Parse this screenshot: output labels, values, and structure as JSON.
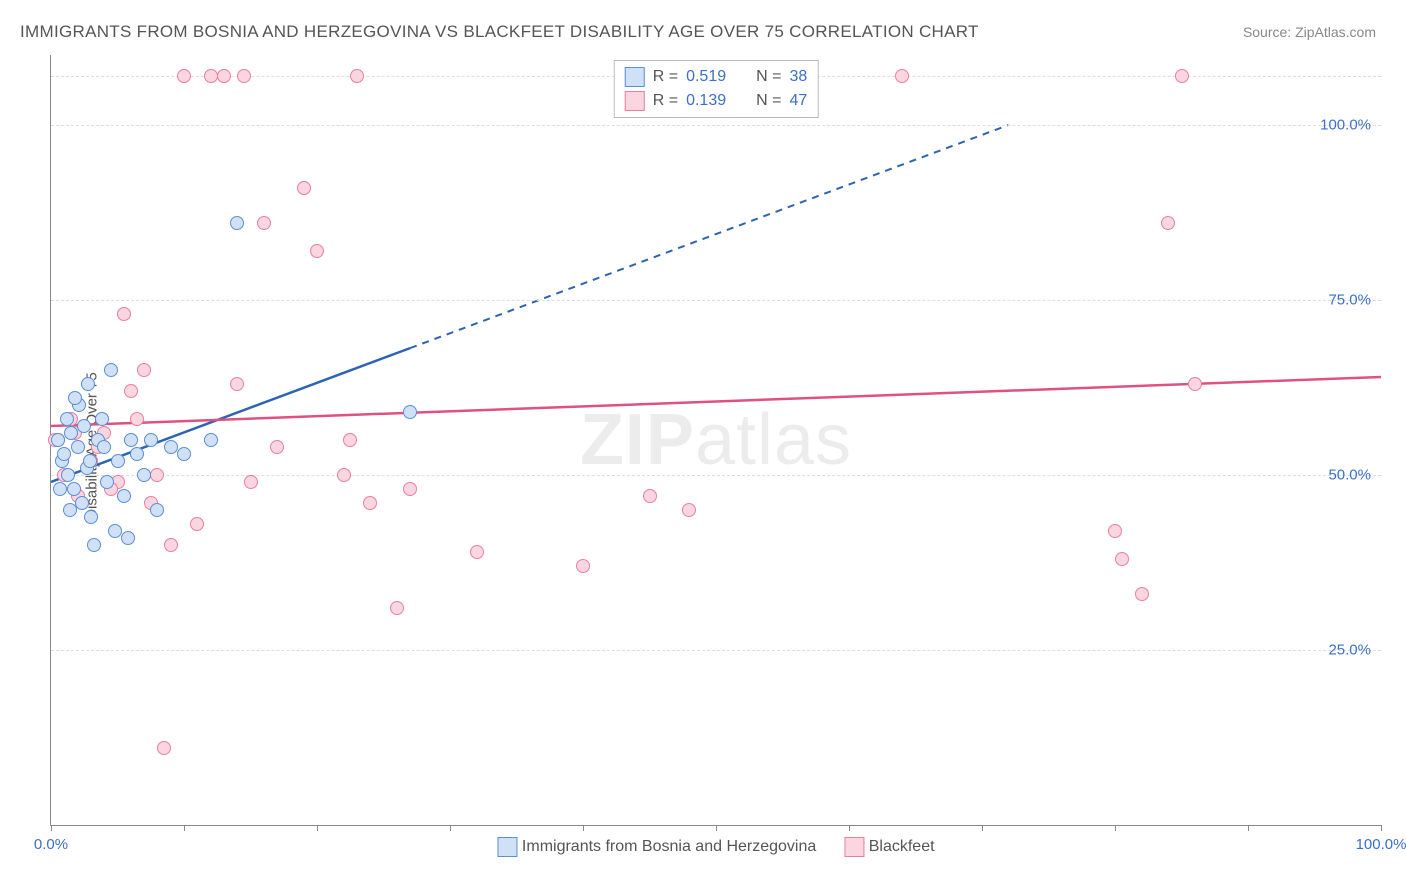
{
  "title": "IMMIGRANTS FROM BOSNIA AND HERZEGOVINA VS BLACKFEET DISABILITY AGE OVER 75 CORRELATION CHART",
  "source": "Source: ZipAtlas.com",
  "ylabel": "Disability Age Over 75",
  "watermark_a": "ZIP",
  "watermark_b": "atlas",
  "xlim": [
    0,
    100
  ],
  "ylim": [
    0,
    110
  ],
  "x_ticks": [
    0,
    10,
    20,
    30,
    40,
    50,
    60,
    70,
    80,
    90,
    100
  ],
  "x_tick_labels": {
    "0": "0.0%",
    "100": "100.0%"
  },
  "y_gridlines": [
    25,
    50,
    75,
    100,
    107
  ],
  "y_tick_labels": {
    "25": "25.0%",
    "50": "50.0%",
    "75": "75.0%",
    "100": "100.0%"
  },
  "series": [
    {
      "name": "Immigrants from Bosnia and Herzegovina",
      "color_fill": "#cfe0f7",
      "color_stroke": "#5a8fd6",
      "r": 0.519,
      "n": 38,
      "marker_radius": 7,
      "trend": {
        "x1": 0,
        "y1": 49,
        "x2": 27,
        "y2": 68,
        "x2b": 72,
        "y2b": 100,
        "solid_to_x": 27,
        "stroke": "#2d63b3",
        "width": 2.5
      },
      "points": [
        [
          0.5,
          55
        ],
        [
          0.8,
          52
        ],
        [
          1,
          53
        ],
        [
          1.2,
          58
        ],
        [
          1.3,
          50
        ],
        [
          1.5,
          56
        ],
        [
          1.7,
          48
        ],
        [
          2,
          54
        ],
        [
          2.1,
          60
        ],
        [
          2.3,
          46
        ],
        [
          2.5,
          57
        ],
        [
          2.7,
          51
        ],
        [
          3,
          44
        ],
        [
          3.2,
          40
        ],
        [
          3.5,
          55
        ],
        [
          4,
          54
        ],
        [
          4.2,
          49
        ],
        [
          4.5,
          65
        ],
        [
          5,
          52
        ],
        [
          5.5,
          47
        ],
        [
          5.8,
          41
        ],
        [
          6,
          55
        ],
        [
          6.5,
          53
        ],
        [
          7,
          50
        ],
        [
          7.5,
          55
        ],
        [
          8,
          45
        ],
        [
          9,
          54
        ],
        [
          10,
          53
        ],
        [
          12,
          55
        ],
        [
          14,
          86
        ],
        [
          2.8,
          63
        ],
        [
          1.8,
          61
        ],
        [
          3.8,
          58
        ],
        [
          4.8,
          42
        ],
        [
          0.7,
          48
        ],
        [
          27,
          59
        ],
        [
          1.4,
          45
        ],
        [
          2.9,
          52
        ]
      ]
    },
    {
      "name": "Blackfeet",
      "color_fill": "#fbd6e0",
      "color_stroke": "#e77fa0",
      "r": 0.139,
      "n": 47,
      "marker_radius": 7,
      "trend": {
        "x1": 0,
        "y1": 57,
        "x2": 100,
        "y2": 64,
        "solid_to_x": 100,
        "stroke": "#e05080",
        "width": 2.5
      },
      "points": [
        [
          0.5,
          55
        ],
        [
          1,
          50
        ],
        [
          1.5,
          58
        ],
        [
          2,
          47
        ],
        [
          3,
          52
        ],
        [
          4,
          56
        ],
        [
          5,
          49
        ],
        [
          5.5,
          73
        ],
        [
          6,
          62
        ],
        [
          7,
          65
        ],
        [
          7.5,
          46
        ],
        [
          8,
          50
        ],
        [
          8.5,
          11
        ],
        [
          9,
          40
        ],
        [
          10,
          107
        ],
        [
          11,
          43
        ],
        [
          12,
          107
        ],
        [
          13,
          107
        ],
        [
          14,
          63
        ],
        [
          15,
          49
        ],
        [
          16,
          86
        ],
        [
          17,
          54
        ],
        [
          19,
          91
        ],
        [
          20,
          82
        ],
        [
          22,
          50
        ],
        [
          22.5,
          55
        ],
        [
          23,
          107
        ],
        [
          24,
          46
        ],
        [
          26,
          31
        ],
        [
          27,
          48
        ],
        [
          32,
          39
        ],
        [
          40,
          37
        ],
        [
          45,
          47
        ],
        [
          64,
          107
        ],
        [
          80,
          42
        ],
        [
          80.5,
          38
        ],
        [
          82,
          33
        ],
        [
          84,
          86
        ],
        [
          85,
          107
        ],
        [
          86,
          63
        ],
        [
          0.3,
          55
        ],
        [
          6.5,
          58
        ],
        [
          14.5,
          107
        ],
        [
          1.8,
          56
        ],
        [
          3.5,
          54
        ],
        [
          48,
          45
        ],
        [
          4.5,
          48
        ]
      ]
    }
  ],
  "legend_bottom": [
    {
      "swatch_fill": "#cfe0f7",
      "swatch_stroke": "#5a8fd6",
      "label": "Immigrants from Bosnia and Herzegovina"
    },
    {
      "swatch_fill": "#fbd6e0",
      "swatch_stroke": "#e77fa0",
      "label": "Blackfeet"
    }
  ]
}
